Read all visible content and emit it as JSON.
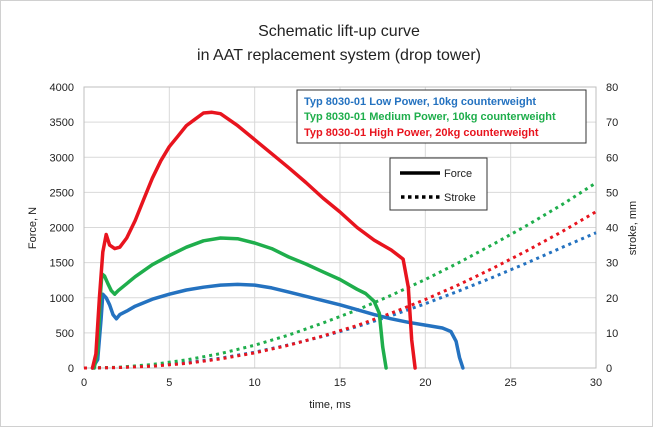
{
  "chart_data": {
    "type": "line",
    "title_line1": "Schematic lift-up curve",
    "title_line2": "in AAT replacement system (drop tower)",
    "xlabel": "time, ms",
    "ylabel": "Force, N",
    "y2label": "stroke, mm",
    "xlim": [
      0,
      30
    ],
    "ylim": [
      0,
      4000
    ],
    "y2lim": [
      0,
      80
    ],
    "xticks": [
      "0",
      "5",
      "10",
      "15",
      "20",
      "25",
      "30"
    ],
    "yticks": [
      "0",
      "500",
      "1000",
      "1500",
      "2000",
      "2500",
      "3000",
      "3500",
      "4000"
    ],
    "y2ticks": [
      "0",
      "10",
      "20",
      "30",
      "40",
      "50",
      "60",
      "70",
      "80"
    ],
    "grid": true,
    "legend_position": "top-right",
    "series_legend": [
      {
        "name": "Typ 8030-01 Low Power, 10kg counterweight",
        "color": "#2472c0"
      },
      {
        "name": "Typ 8030-01 Medium Power, 10kg counterweight",
        "color": "#1fae4c"
      },
      {
        "name": "Typ 8030-01 High Power, 20kg counterweight",
        "color": "#e8141e"
      }
    ],
    "style_key": {
      "force": "Force",
      "stroke": "Stroke"
    },
    "force_series": [
      {
        "color": "#2472c0",
        "x": [
          0.5,
          0.8,
          1.0,
          1.1,
          1.3,
          1.5,
          1.7,
          1.9,
          2.1,
          2.5,
          3,
          4,
          5,
          6,
          7,
          8,
          9,
          10,
          11,
          12,
          13,
          14,
          15,
          16,
          17,
          18,
          19,
          20,
          21,
          21.5,
          21.8,
          22.0,
          22.2
        ],
        "y": [
          0,
          120,
          700,
          1050,
          1000,
          900,
          760,
          700,
          760,
          810,
          880,
          980,
          1050,
          1110,
          1150,
          1180,
          1190,
          1180,
          1140,
          1080,
          1020,
          960,
          900,
          830,
          760,
          700,
          650,
          610,
          570,
          520,
          380,
          150,
          0
        ]
      },
      {
        "color": "#1fae4c",
        "x": [
          0.6,
          0.8,
          0.95,
          1.05,
          1.2,
          1.4,
          1.6,
          1.8,
          2,
          2.5,
          3,
          4,
          5,
          6,
          7,
          8,
          9,
          10,
          11,
          12,
          13,
          14,
          15,
          16,
          16.5,
          17,
          17.3,
          17.5,
          17.7
        ],
        "y": [
          0,
          250,
          1000,
          1340,
          1310,
          1200,
          1100,
          1050,
          1100,
          1200,
          1300,
          1470,
          1600,
          1720,
          1810,
          1850,
          1840,
          1780,
          1700,
          1580,
          1480,
          1370,
          1260,
          1120,
          1060,
          950,
          780,
          300,
          0
        ]
      },
      {
        "color": "#e8141e",
        "x": [
          0.5,
          0.7,
          0.9,
          1.1,
          1.3,
          1.5,
          1.8,
          2.1,
          2.5,
          3,
          3.5,
          4,
          4.5,
          5,
          5.5,
          6,
          6.5,
          7,
          7.5,
          8,
          9,
          10,
          11,
          12,
          13,
          14,
          15,
          16,
          17,
          18,
          18.7,
          19.0,
          19.2,
          19.4
        ],
        "y": [
          0,
          200,
          1000,
          1650,
          1900,
          1750,
          1700,
          1720,
          1850,
          2100,
          2400,
          2700,
          2950,
          3150,
          3300,
          3450,
          3540,
          3630,
          3640,
          3620,
          3450,
          3250,
          3050,
          2850,
          2640,
          2420,
          2220,
          2000,
          1820,
          1680,
          1550,
          1150,
          400,
          0
        ]
      }
    ],
    "stroke_series": [
      {
        "color": "#2472c0",
        "x": [
          0,
          2,
          4,
          6,
          8,
          10,
          12,
          14,
          16,
          18,
          20,
          22,
          24,
          26,
          28,
          30
        ],
        "y": [
          0,
          0.1,
          0.6,
          1.5,
          2.8,
          4.5,
          6.6,
          9.0,
          11.8,
          14.9,
          18.3,
          22.0,
          25.9,
          30.0,
          34.3,
          38.5
        ]
      },
      {
        "color": "#1fae4c",
        "x": [
          0,
          2,
          4,
          6,
          8,
          10,
          12,
          14,
          16,
          18,
          20,
          22,
          24,
          26,
          28,
          30
        ],
        "y": [
          0,
          0.2,
          1.0,
          2.3,
          4.1,
          6.5,
          9.4,
          12.8,
          16.5,
          20.7,
          25.2,
          30.1,
          35.3,
          40.7,
          46.5,
          52.7
        ]
      },
      {
        "color": "#e8141e",
        "x": [
          0,
          2,
          4,
          6,
          8,
          10,
          12,
          14,
          16,
          18,
          20,
          22,
          24,
          26,
          28,
          30
        ],
        "y": [
          0,
          0.1,
          0.5,
          1.3,
          2.6,
          4.3,
          6.5,
          9.1,
          12.1,
          15.6,
          19.5,
          23.8,
          28.5,
          33.5,
          38.8,
          44.5
        ]
      }
    ]
  }
}
